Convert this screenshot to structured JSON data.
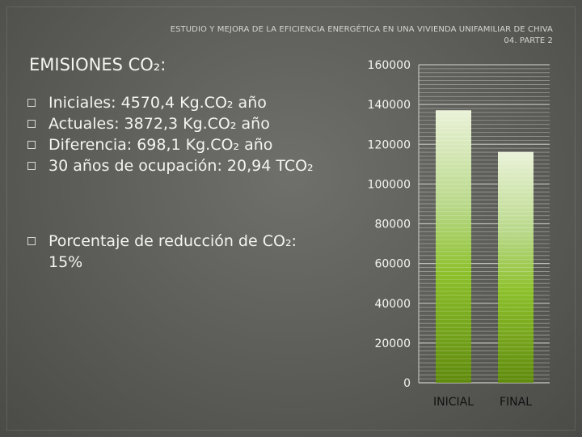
{
  "header": {
    "line1": "ESTUDIO Y MEJORA DE LA EFICIENCIA ENERGÉTICA EN UNA VIVIENDA UNIFAMILIAR DE CHIVA",
    "line2": "04. PARTE 2"
  },
  "title": "EMISIONES CO₂:",
  "bullets_top": [
    "Iniciales: 4570,4 Kg.CO₂ año",
    "Actuales: 3872,3  Kg.CO₂ año",
    "Diferencia: 698,1 Kg.CO₂ año",
    "30 años de ocupación: 20,94 TCO₂"
  ],
  "bullets_bottom": [
    "Porcentaje de reducción de CO₂:",
    "15%"
  ],
  "chart_data": {
    "type": "bar",
    "categories": [
      "INICIAL",
      "FINAL"
    ],
    "values": [
      137112,
      116169
    ],
    "ylim": [
      0,
      160000
    ],
    "yticks": [
      "0",
      "20000",
      "40000",
      "60000",
      "80000",
      "100000",
      "120000",
      "140000",
      "160000"
    ],
    "grid": true,
    "legend": "none",
    "bar_color_top": "#eaf2d8",
    "bar_color_bottom": "#5f8a0c"
  }
}
